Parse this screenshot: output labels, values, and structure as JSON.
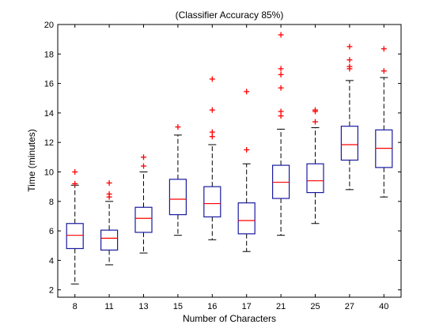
{
  "chart_data": {
    "type": "boxplot",
    "title": "(Classifier Accuracy 85%)",
    "xlabel": "Number of Characters",
    "ylabel": "Time (minutes)",
    "categories": [
      "8",
      "11",
      "13",
      "15",
      "16",
      "17",
      "21",
      "25",
      "27",
      "40"
    ],
    "ylim": [
      1.5,
      20
    ],
    "yticks": [
      2,
      4,
      6,
      8,
      10,
      12,
      14,
      16,
      18,
      20
    ],
    "grid": false,
    "legend": "none",
    "box_color": "#1a1aa0",
    "median_color": "#ff0000",
    "outlier_color": "#ff0000",
    "whisker_color": "#000000",
    "boxes": [
      {
        "category": "8",
        "whisker_low": 2.4,
        "q1": 4.8,
        "median": 5.7,
        "q3": 6.5,
        "whisker_high": 9.1,
        "outliers": [
          9.2,
          10.0
        ]
      },
      {
        "category": "11",
        "whisker_low": 3.7,
        "q1": 4.7,
        "median": 5.5,
        "q3": 6.05,
        "whisker_high": 8.0,
        "outliers": [
          8.3,
          8.5,
          9.25
        ]
      },
      {
        "category": "13",
        "whisker_low": 4.5,
        "q1": 5.9,
        "median": 6.85,
        "q3": 7.6,
        "whisker_high": 10.0,
        "outliers": [
          10.4,
          11.0
        ]
      },
      {
        "category": "15",
        "whisker_low": 5.7,
        "q1": 7.1,
        "median": 8.15,
        "q3": 9.5,
        "whisker_high": 12.5,
        "outliers": [
          13.05
        ]
      },
      {
        "category": "16",
        "whisker_low": 5.4,
        "q1": 6.95,
        "median": 7.85,
        "q3": 9.0,
        "whisker_high": 11.85,
        "outliers": [
          12.4,
          12.7,
          14.2,
          16.3
        ]
      },
      {
        "category": "17",
        "whisker_low": 4.6,
        "q1": 5.8,
        "median": 6.7,
        "q3": 7.9,
        "whisker_high": 10.55,
        "outliers": [
          11.5,
          15.45
        ]
      },
      {
        "category": "21",
        "whisker_low": 5.7,
        "q1": 8.2,
        "median": 9.3,
        "q3": 10.45,
        "whisker_high": 12.9,
        "outliers": [
          13.8,
          14.1,
          15.7,
          16.6,
          17.0,
          19.3
        ]
      },
      {
        "category": "25",
        "whisker_low": 6.5,
        "q1": 8.6,
        "median": 9.4,
        "q3": 10.55,
        "whisker_high": 13.0,
        "outliers": [
          13.4,
          14.1,
          14.2
        ]
      },
      {
        "category": "27",
        "whisker_low": 8.8,
        "q1": 10.8,
        "median": 11.85,
        "q3": 13.1,
        "whisker_high": 16.2,
        "outliers": [
          17.0,
          17.15,
          17.6,
          18.5
        ]
      },
      {
        "category": "40",
        "whisker_low": 8.3,
        "q1": 10.3,
        "median": 11.6,
        "q3": 12.85,
        "whisker_high": 16.4,
        "outliers": [
          16.85,
          18.35
        ]
      }
    ]
  }
}
